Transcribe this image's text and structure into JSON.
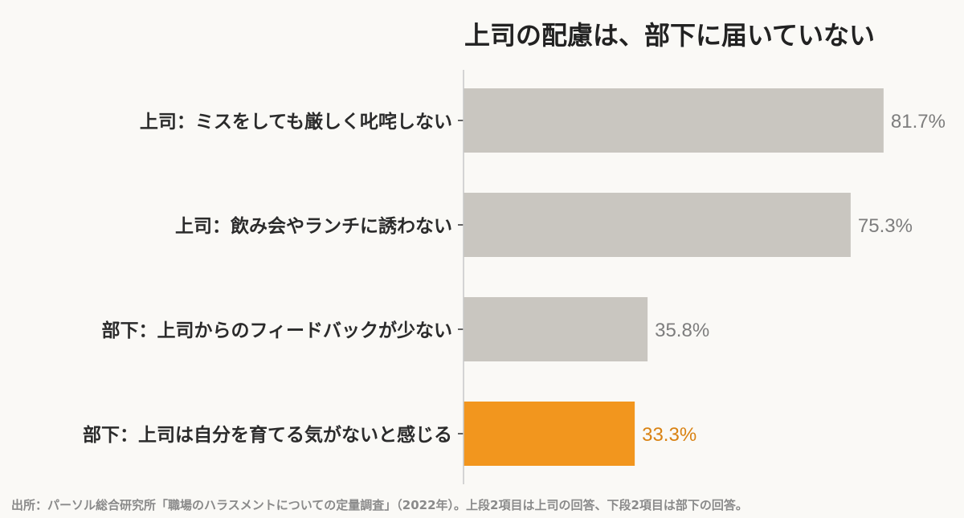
{
  "chart_data": {
    "type": "bar",
    "orientation": "horizontal",
    "title": "上司の配慮は、部下に届いていない",
    "categories": [
      "上司：ミスをしても厳しく叱咤しない",
      "上司：飲み会やランチに誘わない",
      "部下：上司からのフィードバックが少ない",
      "部下：上司は自分を育てる気がないと感じる"
    ],
    "values": [
      81.7,
      75.3,
      35.8,
      33.3
    ],
    "value_labels": [
      "81.7%",
      "75.3%",
      "35.8%",
      "33.3%"
    ],
    "unit": "%",
    "xlim": [
      0,
      100
    ],
    "highlight_index": 3,
    "grid": false,
    "legend": "none"
  },
  "colors": {
    "bar": "#c9c6c0",
    "highlight": "#f2961e",
    "value_text": "#7d7d7d",
    "highlight_text": "#d98212",
    "axis": "#c8c8c8"
  },
  "source": "出所：パーソル総合研究所「職場のハラスメントについての定量調査」（2022年）。上段2項目は上司の回答、下段2項目は部下の回答。"
}
